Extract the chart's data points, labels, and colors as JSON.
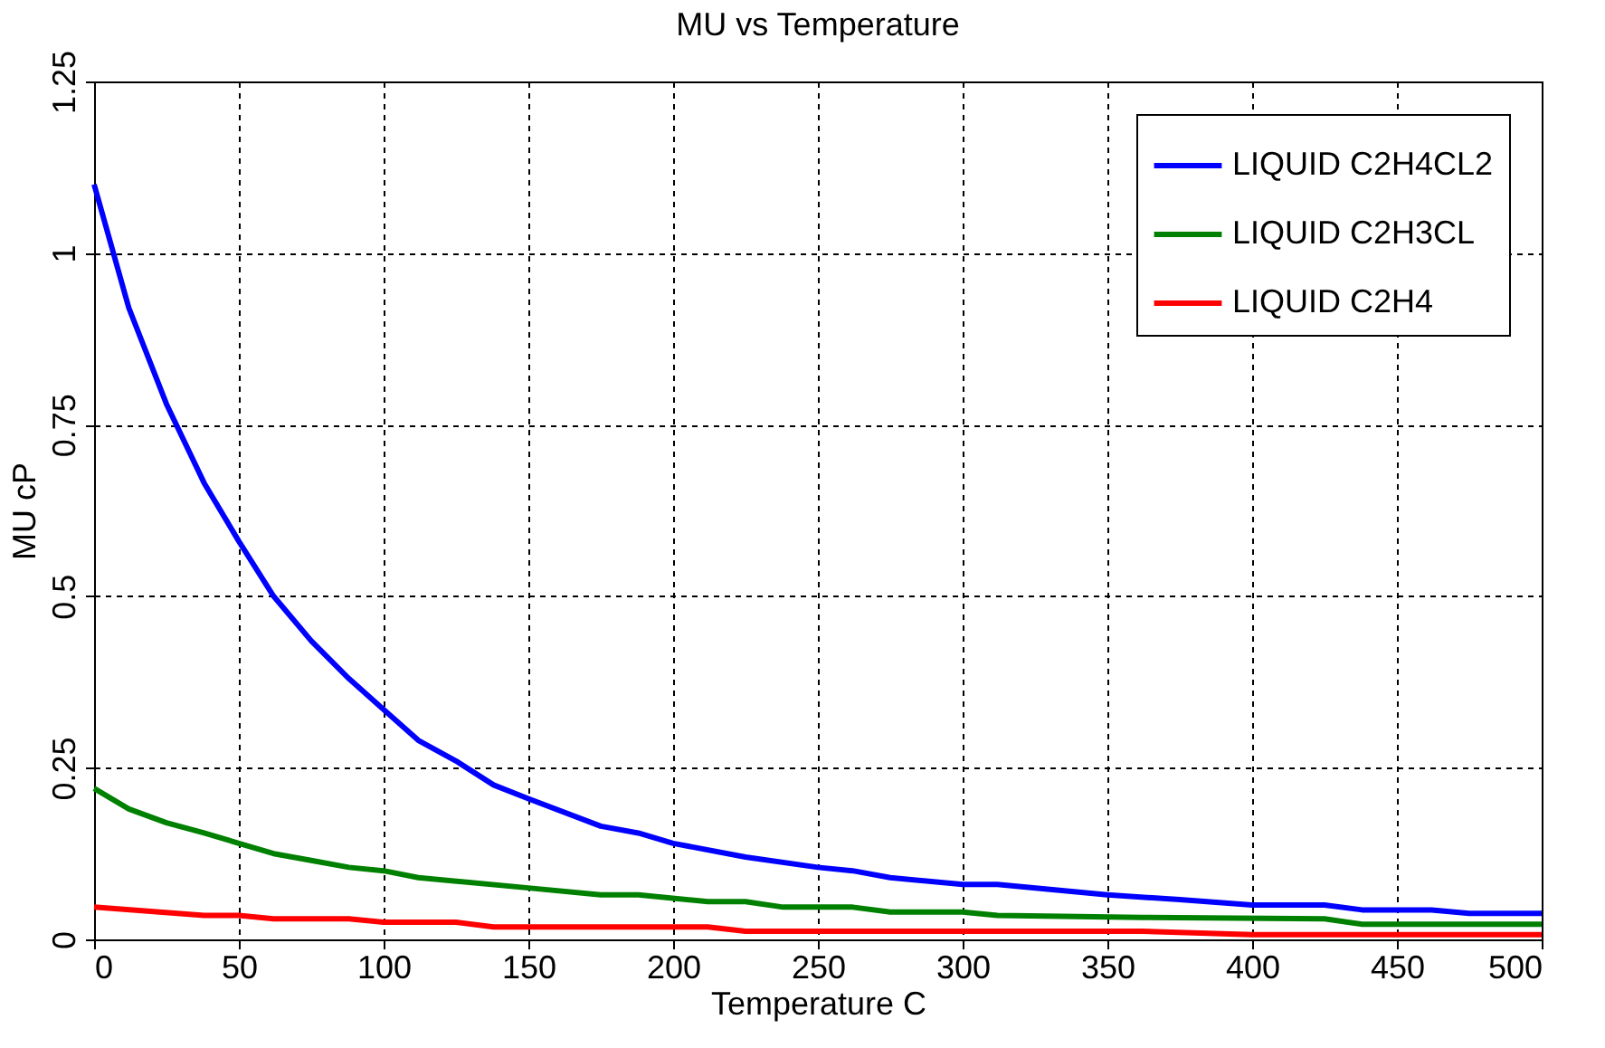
{
  "chart_data": {
    "type": "line",
    "title": "MU vs Temperature",
    "xlabel": "Temperature  C",
    "ylabel": "MU cP",
    "xlim": [
      0,
      500
    ],
    "xticks": [
      0,
      50,
      100,
      150,
      200,
      250,
      300,
      350,
      400,
      450,
      500
    ],
    "ylim": [
      0,
      1.25
    ],
    "yticks": [
      0,
      0.25,
      0.5,
      0.75,
      1,
      1.25
    ],
    "grid": true,
    "legend": "top right",
    "line_style": "solid",
    "marker": "none",
    "series": [
      {
        "name": "LIQUID C2H4CL2",
        "color": "#0000ff",
        "x": [
          0,
          12,
          25,
          38,
          50,
          62,
          75,
          88,
          100,
          112,
          125,
          138,
          150,
          175,
          188,
          200,
          225,
          250,
          262,
          275,
          300,
          312,
          350,
          375,
          400,
          425,
          438,
          462,
          475,
          500
        ],
        "values": [
          1.1,
          0.92,
          0.78,
          0.665,
          0.58,
          0.5,
          0.435,
          0.38,
          0.335,
          0.29,
          0.26,
          0.225,
          0.205,
          0.165,
          0.155,
          0.14,
          0.12,
          0.105,
          0.1,
          0.09,
          0.08,
          0.08,
          0.065,
          0.058,
          0.05,
          0.05,
          0.043,
          0.043,
          0.038,
          0.038
        ]
      },
      {
        "name": "LIQUID C2H3CL",
        "color": "#008000",
        "x": [
          0,
          12,
          25,
          38,
          50,
          62,
          75,
          88,
          100,
          112,
          150,
          175,
          188,
          212,
          225,
          238,
          262,
          275,
          300,
          312,
          362,
          425,
          438,
          500
        ],
        "values": [
          0.22,
          0.19,
          0.17,
          0.155,
          0.14,
          0.125,
          0.115,
          0.105,
          0.1,
          0.09,
          0.075,
          0.065,
          0.065,
          0.055,
          0.055,
          0.047,
          0.047,
          0.04,
          0.04,
          0.035,
          0.032,
          0.03,
          0.022,
          0.022
        ]
      },
      {
        "name": "LIQUID C2H4",
        "color": "#ff0000",
        "x": [
          0,
          38,
          50,
          62,
          88,
          100,
          125,
          138,
          212,
          225,
          362,
          400,
          500
        ],
        "values": [
          0.047,
          0.035,
          0.035,
          0.03,
          0.03,
          0.025,
          0.025,
          0.018,
          0.018,
          0.012,
          0.012,
          0.007,
          0.007
        ]
      }
    ]
  }
}
